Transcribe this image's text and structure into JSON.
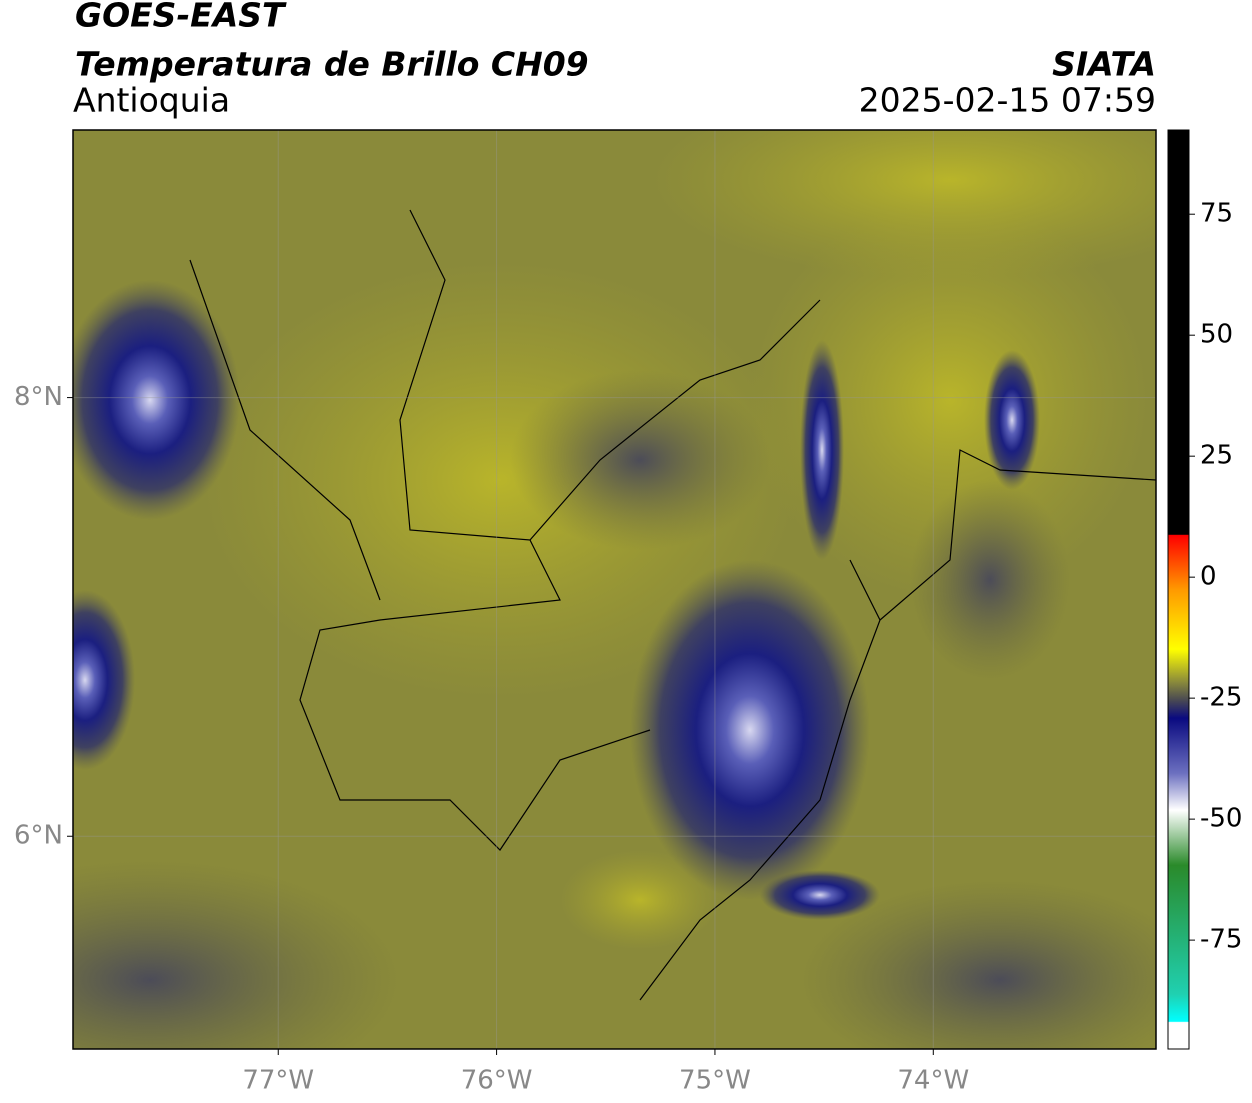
{
  "header": {
    "title": "GOES-EAST",
    "subtitle": "Temperatura de Brillo CH09",
    "region": "Antioquia",
    "source": "SIATA",
    "datetime": "2025-02-15 07:59"
  },
  "map": {
    "xlim": [
      -77.94,
      -72.98
    ],
    "ylim": [
      5.03,
      9.22
    ],
    "xticks": [
      {
        "value": -77,
        "label": "77°W"
      },
      {
        "value": -76,
        "label": "76°W"
      },
      {
        "value": -75,
        "label": "75°W"
      },
      {
        "value": -74,
        "label": "74°W"
      }
    ],
    "yticks": [
      {
        "value": 8,
        "label": "8°N"
      },
      {
        "value": 6,
        "label": "6°N"
      }
    ],
    "grid": true
  },
  "colorbar": {
    "lim": [
      -97.5,
      92.4
    ],
    "ticks": [
      75,
      50,
      25,
      0,
      -25,
      -50,
      -75
    ]
  }
}
